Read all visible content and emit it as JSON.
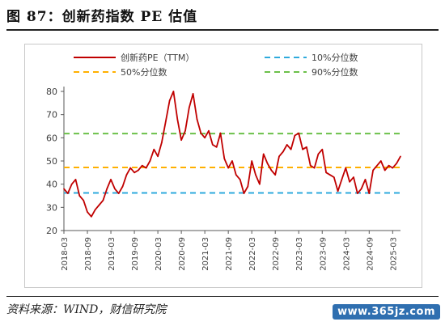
{
  "header": {
    "title": "图 87：创新药指数 PE 估值"
  },
  "footer": {
    "source": "资料来源：WIND，财信研究院",
    "watermark": "www.365jz.com"
  },
  "colors": {
    "main": "#c00000",
    "p10": "#2eaadc",
    "p50": "#ffb000",
    "p90": "#6cc04a",
    "axis": "#595959"
  },
  "chart_data": {
    "type": "line",
    "xlabel": "",
    "ylabel": "",
    "ylim": [
      20,
      80
    ],
    "yticks": [
      20,
      30,
      40,
      50,
      60,
      70,
      80
    ],
    "xticks": [
      "2018-03",
      "2018-09",
      "2019-03",
      "2019-09",
      "2020-03",
      "2020-09",
      "2021-03",
      "2021-09",
      "2022-03",
      "2022-09",
      "2023-03",
      "2023-09",
      "2024-03",
      "2024-09",
      "2025-03"
    ],
    "grid": false,
    "legend": "top",
    "series": [
      {
        "name": "创新药PE（TTM）",
        "color": "#c00000",
        "x": [
          "2018-03",
          "2018-04",
          "2018-05",
          "2018-06",
          "2018-07",
          "2018-08",
          "2018-09",
          "2018-10",
          "2018-11",
          "2018-12",
          "2019-01",
          "2019-02",
          "2019-03",
          "2019-04",
          "2019-05",
          "2019-06",
          "2019-07",
          "2019-08",
          "2019-09",
          "2019-10",
          "2019-11",
          "2019-12",
          "2020-01",
          "2020-02",
          "2020-03",
          "2020-04",
          "2020-05",
          "2020-06",
          "2020-07",
          "2020-08",
          "2020-09",
          "2020-10",
          "2020-11",
          "2020-12",
          "2021-01",
          "2021-02",
          "2021-03",
          "2021-04",
          "2021-05",
          "2021-06",
          "2021-07",
          "2021-08",
          "2021-09",
          "2021-10",
          "2021-11",
          "2021-12",
          "2022-01",
          "2022-02",
          "2022-03",
          "2022-04",
          "2022-05",
          "2022-06",
          "2022-07",
          "2022-08",
          "2022-09",
          "2022-10",
          "2022-11",
          "2022-12",
          "2023-01",
          "2023-02",
          "2023-03",
          "2023-04",
          "2023-05",
          "2023-06",
          "2023-07",
          "2023-08",
          "2023-09",
          "2023-10",
          "2023-11",
          "2023-12",
          "2024-01",
          "2024-02",
          "2024-03",
          "2024-04",
          "2024-05",
          "2024-06",
          "2024-07",
          "2024-08",
          "2024-09",
          "2024-10",
          "2024-11",
          "2024-12",
          "2025-01",
          "2025-02",
          "2025-03",
          "2025-04",
          "2025-05"
        ],
        "values": [
          38,
          36,
          40,
          42,
          35,
          33,
          28,
          26,
          29,
          31,
          33,
          38,
          42,
          38,
          36,
          39,
          44,
          47,
          45,
          46,
          48,
          47,
          50,
          55,
          52,
          58,
          67,
          76,
          80,
          68,
          59,
          63,
          73,
          79,
          68,
          62,
          60,
          63,
          57,
          56,
          62,
          51,
          47,
          50,
          44,
          42,
          36,
          39,
          50,
          44,
          40,
          53,
          49,
          46,
          44,
          52,
          54,
          57,
          55,
          61,
          62,
          55,
          56,
          48,
          47,
          53,
          55,
          45,
          44,
          43,
          37,
          42,
          47,
          41,
          43,
          36,
          38,
          42,
          36,
          46,
          48,
          50,
          46,
          48,
          47,
          49,
          52
        ]
      },
      {
        "name": "10%分位数",
        "color": "#2eaadc",
        "values": [
          36.2,
          36.2
        ]
      },
      {
        "name": "50%分位数",
        "color": "#ffb000",
        "values": [
          47.2,
          47.2
        ]
      },
      {
        "name": "90%分位数",
        "color": "#6cc04a",
        "values": [
          61.8,
          61.8
        ]
      }
    ]
  }
}
